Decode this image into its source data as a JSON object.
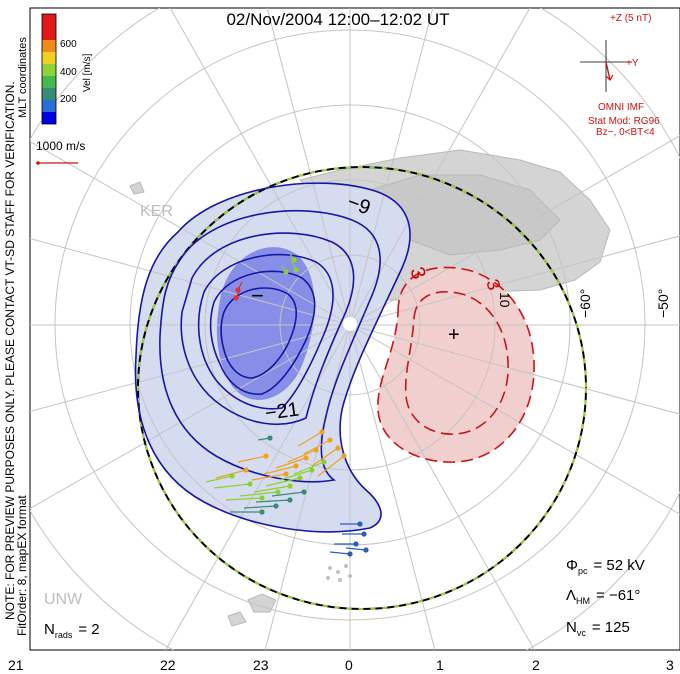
{
  "title": "02/Nov/2004 12:00–12:02 UT",
  "side_text": {
    "note": "NOTE: FOR PREVIEW PURPOSES ONLY. PLEASE CONTACT VT-SD STAFF FOR VERIFICATION.",
    "fitorder": "FitOrder: 8, mapEX format",
    "coords": "MLT coordinates"
  },
  "colorbar": {
    "label": "Vel [m/s]",
    "ticks": [
      "600",
      "400",
      "200"
    ],
    "colors": [
      "#0000e6",
      "#2a6fd6",
      "#3a8a78",
      "#46b84c",
      "#8fd23a",
      "#f2d020",
      "#f08a18",
      "#e01818"
    ]
  },
  "velocity_scale": {
    "label": "1000 m/s"
  },
  "imf": {
    "z_label": "+Z (5 nT)",
    "y_label": "+Y",
    "source": "OMNI IMF",
    "stat_mod": "Stat Mod: RG96",
    "condition": "Bz−, 0<BT<4"
  },
  "stations": [
    {
      "label": "KER"
    },
    {
      "label": "UNW"
    }
  ],
  "latitude_labels": [
    "−60°",
    "−50°"
  ],
  "contours": {
    "negative_label_a": "−9",
    "negative_label_b": "−21",
    "positive_label_a": "3",
    "positive_label_b": "3",
    "positive_label_c": "10",
    "min_marker": "−",
    "max_marker": "+"
  },
  "stats": {
    "phi_pc": {
      "symbol": "Φ",
      "sub": "pc",
      "value": "= 52 kV"
    },
    "lambda_hm": {
      "symbol": "Λ",
      "sub": "HM",
      "value": "= −61°"
    },
    "n_vc": {
      "symbol": "N",
      "sub": "vc",
      "value": "= 125"
    },
    "n_rads": {
      "symbol": "N",
      "sub": "rads",
      "value": "= 2"
    }
  },
  "mlt_axis": [
    "21",
    "22",
    "23",
    "0",
    "1",
    "2",
    "3"
  ]
}
